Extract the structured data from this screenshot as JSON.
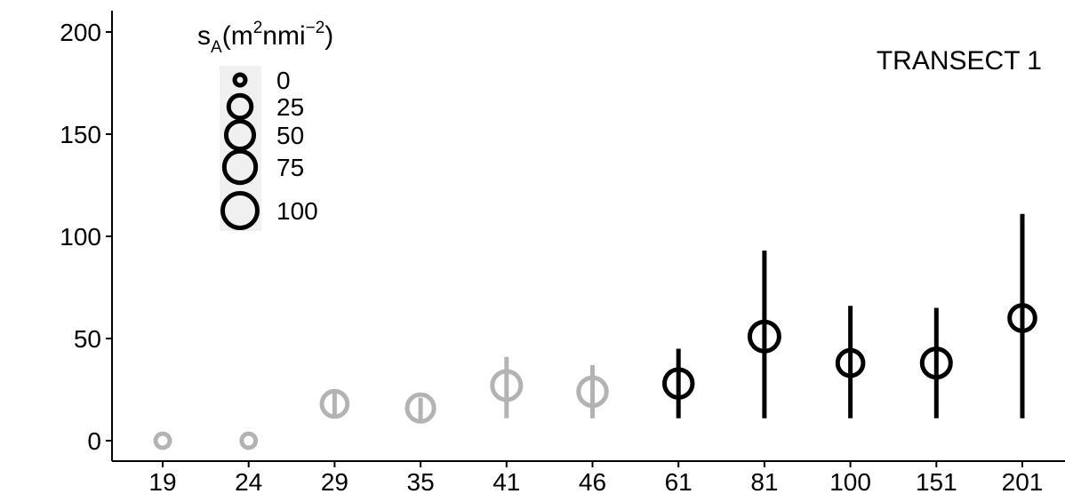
{
  "chart_data": {
    "type": "scatter",
    "title": "",
    "annotation": "TRANSECT 1",
    "xlabel": "",
    "ylabel": "",
    "categories": [
      "19",
      "24",
      "29",
      "35",
      "41",
      "46",
      "61",
      "81",
      "100",
      "151",
      "201"
    ],
    "ylim": [
      -10,
      210
    ],
    "yticks": [
      "0",
      "50",
      "100",
      "150",
      "200"
    ],
    "grid": false,
    "legend": {
      "title_main": "s",
      "title_sub": "A",
      "title_paren_open": "(",
      "title_m": "m",
      "title_exp1": "2",
      "title_nmi": "nmi",
      "title_exp2": "−2",
      "title_paren_close": ")",
      "position": "top-left",
      "entries": [
        {
          "label": "0",
          "value": 0
        },
        {
          "label": "25",
          "value": 25
        },
        {
          "label": "50",
          "value": 50
        },
        {
          "label": "75",
          "value": 75
        },
        {
          "label": "100",
          "value": 100
        }
      ]
    },
    "points": [
      {
        "x": "19",
        "y": 0,
        "low": 0,
        "high": 0,
        "sA": 2,
        "color": "#b3b3b3"
      },
      {
        "x": "24",
        "y": 0,
        "low": 0,
        "high": 0,
        "sA": 2,
        "color": "#b3b3b3"
      },
      {
        "x": "29",
        "y": 18,
        "low": 11,
        "high": 25,
        "sA": 38,
        "color": "#b3b3b3"
      },
      {
        "x": "35",
        "y": 16,
        "low": 10,
        "high": 21,
        "sA": 45,
        "color": "#b3b3b3"
      },
      {
        "x": "41",
        "y": 27,
        "low": 11,
        "high": 41,
        "sA": 55,
        "color": "#b3b3b3"
      },
      {
        "x": "46",
        "y": 24,
        "low": 11,
        "high": 37,
        "sA": 52,
        "color": "#b3b3b3"
      },
      {
        "x": "61",
        "y": 28,
        "low": 11,
        "high": 45,
        "sA": 52,
        "color": "#000000"
      },
      {
        "x": "81",
        "y": 51,
        "low": 11,
        "high": 93,
        "sA": 60,
        "color": "#000000"
      },
      {
        "x": "100",
        "y": 38,
        "low": 11,
        "high": 66,
        "sA": 38,
        "color": "#000000"
      },
      {
        "x": "151",
        "y": 38,
        "low": 11,
        "high": 65,
        "sA": 55,
        "color": "#000000"
      },
      {
        "x": "201",
        "y": 60,
        "low": 11,
        "high": 111,
        "sA": 38,
        "color": "#000000"
      }
    ]
  }
}
